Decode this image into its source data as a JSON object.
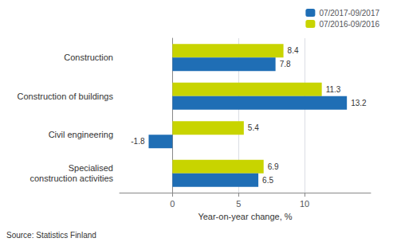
{
  "chart_data": {
    "type": "bar",
    "orientation": "horizontal",
    "categories": [
      "Specialised\nconstruction activities",
      "Civil engineering",
      "Construction of buildings",
      "Construction"
    ],
    "series": [
      {
        "name": "07/2017-09/2017",
        "color": "#1f6eb5",
        "values": [
          6.5,
          -1.8,
          13.2,
          7.8
        ]
      },
      {
        "name": "07/2016-09/2016",
        "color": "#c8d400",
        "values": [
          6.9,
          5.4,
          11.3,
          8.4
        ]
      }
    ],
    "xlabel": "Year-on-year change, %",
    "xlim": [
      -4,
      15
    ],
    "xticks": [
      0,
      5,
      10
    ],
    "grid": true,
    "legend": "upper right",
    "data_labels": true,
    "annotations": [
      "Source: Statistics Finland"
    ]
  }
}
